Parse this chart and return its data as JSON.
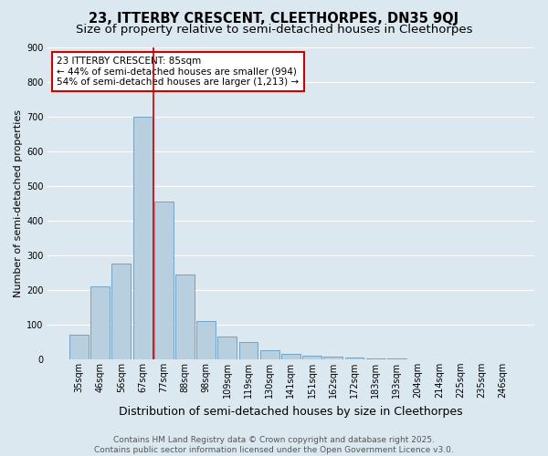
{
  "title": "23, ITTERBY CRESCENT, CLEETHORPES, DN35 9QJ",
  "subtitle": "Size of property relative to semi-detached houses in Cleethorpes",
  "xlabel": "Distribution of semi-detached houses by size in Cleethorpes",
  "ylabel": "Number of semi-detached properties",
  "categories": [
    "35sqm",
    "46sqm",
    "56sqm",
    "67sqm",
    "77sqm",
    "88sqm",
    "98sqm",
    "109sqm",
    "119sqm",
    "130sqm",
    "141sqm",
    "151sqm",
    "162sqm",
    "172sqm",
    "183sqm",
    "193sqm",
    "204sqm",
    "214sqm",
    "225sqm",
    "235sqm",
    "246sqm"
  ],
  "values": [
    70,
    210,
    275,
    700,
    455,
    245,
    110,
    65,
    50,
    25,
    15,
    10,
    8,
    5,
    3,
    2,
    1,
    0,
    0,
    0,
    0
  ],
  "bar_color": "#b8cfe0",
  "bar_edge_color": "#6699bb",
  "annotation_line1": "23 ITTERBY CRESCENT: 85sqm",
  "annotation_line2": "← 44% of semi-detached houses are smaller (994)",
  "annotation_line3": "54% of semi-detached houses are larger (1,213) →",
  "annotation_box_color": "#ffffff",
  "annotation_edge_color": "#cc0000",
  "vline_color": "#cc0000",
  "vline_x_index": 3.5,
  "ylim": [
    0,
    900
  ],
  "yticks": [
    0,
    100,
    200,
    300,
    400,
    500,
    600,
    700,
    800,
    900
  ],
  "bg_color": "#dce8f0",
  "footer_line1": "Contains HM Land Registry data © Crown copyright and database right 2025.",
  "footer_line2": "Contains public sector information licensed under the Open Government Licence v3.0.",
  "title_fontsize": 10.5,
  "subtitle_fontsize": 9.5,
  "xlabel_fontsize": 9,
  "ylabel_fontsize": 8,
  "tick_fontsize": 7,
  "annotation_fontsize": 7.5,
  "footer_fontsize": 6.5
}
